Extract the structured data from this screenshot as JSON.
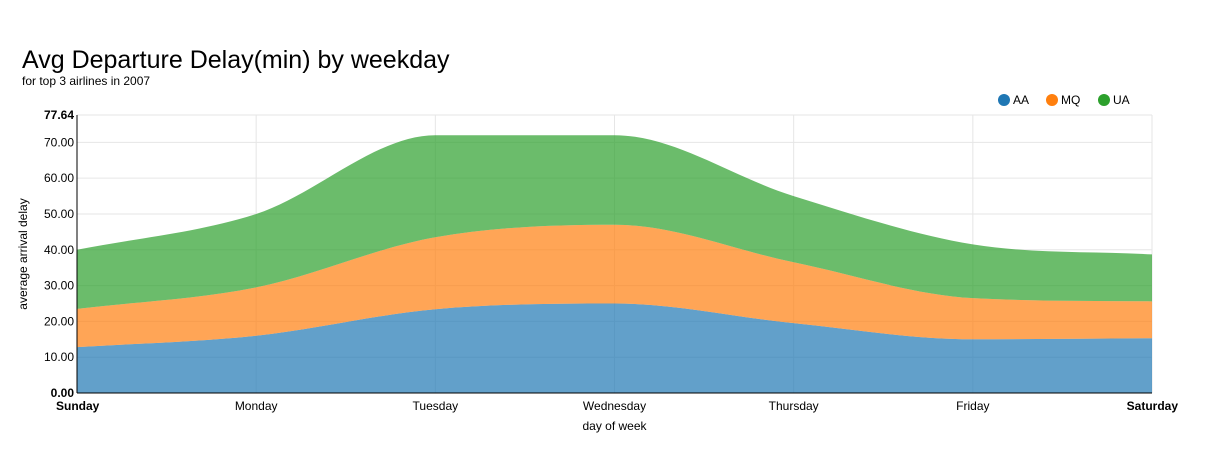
{
  "title": "Avg Departure Delay(min) by weekday",
  "subtitle": "for top 3 airlines in 2007",
  "chart_data": {
    "type": "area",
    "stacked": true,
    "title": "Avg Departure Delay(min) by weekday",
    "subtitle": "for top 3 airlines in 2007",
    "xlabel": "day of week",
    "ylabel": "average arrival delay",
    "categories": [
      "Sunday",
      "Monday",
      "Tuesday",
      "Wednesday",
      "Thursday",
      "Friday",
      "Saturday"
    ],
    "ylim": [
      0,
      77.64
    ],
    "y_ticks": [
      "0.00",
      "10.00",
      "20.00",
      "30.00",
      "40.00",
      "50.00",
      "60.00",
      "70.00",
      "77.64"
    ],
    "grid": true,
    "legend_position": "top-right",
    "series": [
      {
        "name": "AA",
        "color": "#1f77b4",
        "values": [
          12.8,
          16.0,
          23.4,
          25.0,
          19.5,
          15.0,
          15.3
        ]
      },
      {
        "name": "MQ",
        "color": "#ff7f0e",
        "values": [
          10.7,
          13.5,
          20.1,
          22.0,
          17.0,
          11.5,
          10.3
        ]
      },
      {
        "name": "UA",
        "color": "#2ca02c",
        "values": [
          16.5,
          20.5,
          28.5,
          25.0,
          18.5,
          15.0,
          13.1
        ]
      }
    ]
  }
}
